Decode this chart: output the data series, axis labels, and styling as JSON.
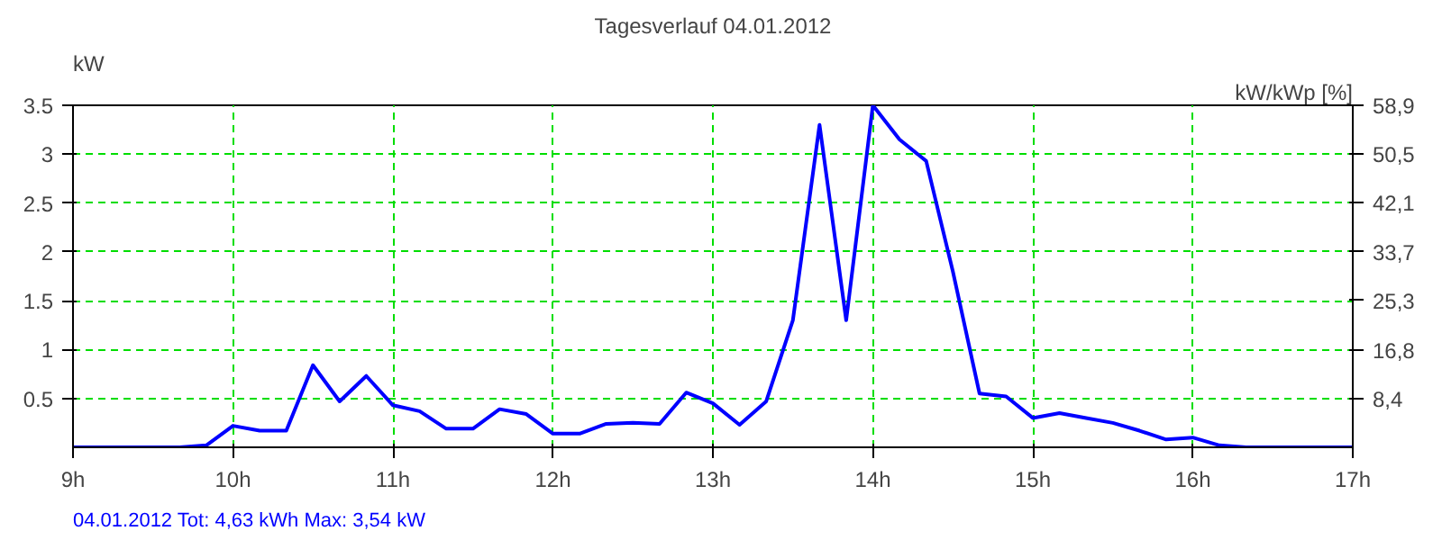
{
  "chart_data": {
    "type": "line",
    "title": "Tagesverlauf 04.01.2012",
    "ylabel": "kW",
    "y2label": "kW/kWp [%]",
    "x": [
      9.0,
      9.1667,
      9.3333,
      9.5,
      9.6667,
      9.8333,
      10.0,
      10.1667,
      10.3333,
      10.5,
      10.6667,
      10.8333,
      11.0,
      11.1667,
      11.3333,
      11.5,
      11.6667,
      11.8333,
      12.0,
      12.1667,
      12.3333,
      12.5,
      12.6667,
      12.8333,
      13.0,
      13.1667,
      13.3333,
      13.5,
      13.6667,
      13.8333,
      14.0,
      14.1667,
      14.3333,
      14.5,
      14.6667,
      14.8333,
      15.0,
      15.1667,
      15.3333,
      15.5,
      15.6667,
      15.8333,
      16.0,
      16.1667,
      16.3333,
      16.5,
      16.6667,
      16.8333,
      17.0
    ],
    "series": [
      {
        "color": "#0000ff",
        "values": [
          0,
          0,
          0,
          0,
          0,
          0.02,
          0.22,
          0.17,
          0.17,
          0.84,
          0.47,
          0.73,
          0.43,
          0.37,
          0.19,
          0.19,
          0.39,
          0.34,
          0.14,
          0.14,
          0.24,
          0.25,
          0.24,
          0.56,
          0.45,
          0.23,
          0.47,
          1.3,
          3.3,
          1.3,
          3.5,
          3.15,
          2.93,
          1.8,
          0.55,
          0.52,
          0.3,
          0.35,
          0.3,
          0.25,
          0.17,
          0.08,
          0.1,
          0.02,
          0,
          0,
          0,
          0,
          0
        ]
      }
    ],
    "xlim": [
      9,
      17
    ],
    "xticks": [
      {
        "value": 9,
        "label": "9h"
      },
      {
        "value": 10,
        "label": "10h"
      },
      {
        "value": 11,
        "label": "11h"
      },
      {
        "value": 12,
        "label": "12h"
      },
      {
        "value": 13,
        "label": "13h"
      },
      {
        "value": 14,
        "label": "14h"
      },
      {
        "value": 15,
        "label": "15h"
      },
      {
        "value": 16,
        "label": "16h"
      },
      {
        "value": 17,
        "label": "17h"
      }
    ],
    "ylim": [
      0,
      3.5
    ],
    "yticks": [
      0.5,
      1,
      1.5,
      2,
      2.5,
      3,
      3.5
    ],
    "y2lim": [
      0,
      58.9
    ],
    "y2ticks": [
      {
        "value": 8.4,
        "label": "8,4"
      },
      {
        "value": 16.8,
        "label": "16,8"
      },
      {
        "value": 25.3,
        "label": "25,3"
      },
      {
        "value": 33.7,
        "label": "33,7"
      },
      {
        "value": 42.1,
        "label": "42,1"
      },
      {
        "value": 50.5,
        "label": "50,5"
      },
      {
        "value": 58.9,
        "label": "58,9"
      }
    ],
    "grid": true,
    "line_style": "solid",
    "marker": "none",
    "annotations": [
      "04.01.2012 Tot: 4,63 kWh Max: 3,54 kW"
    ]
  }
}
